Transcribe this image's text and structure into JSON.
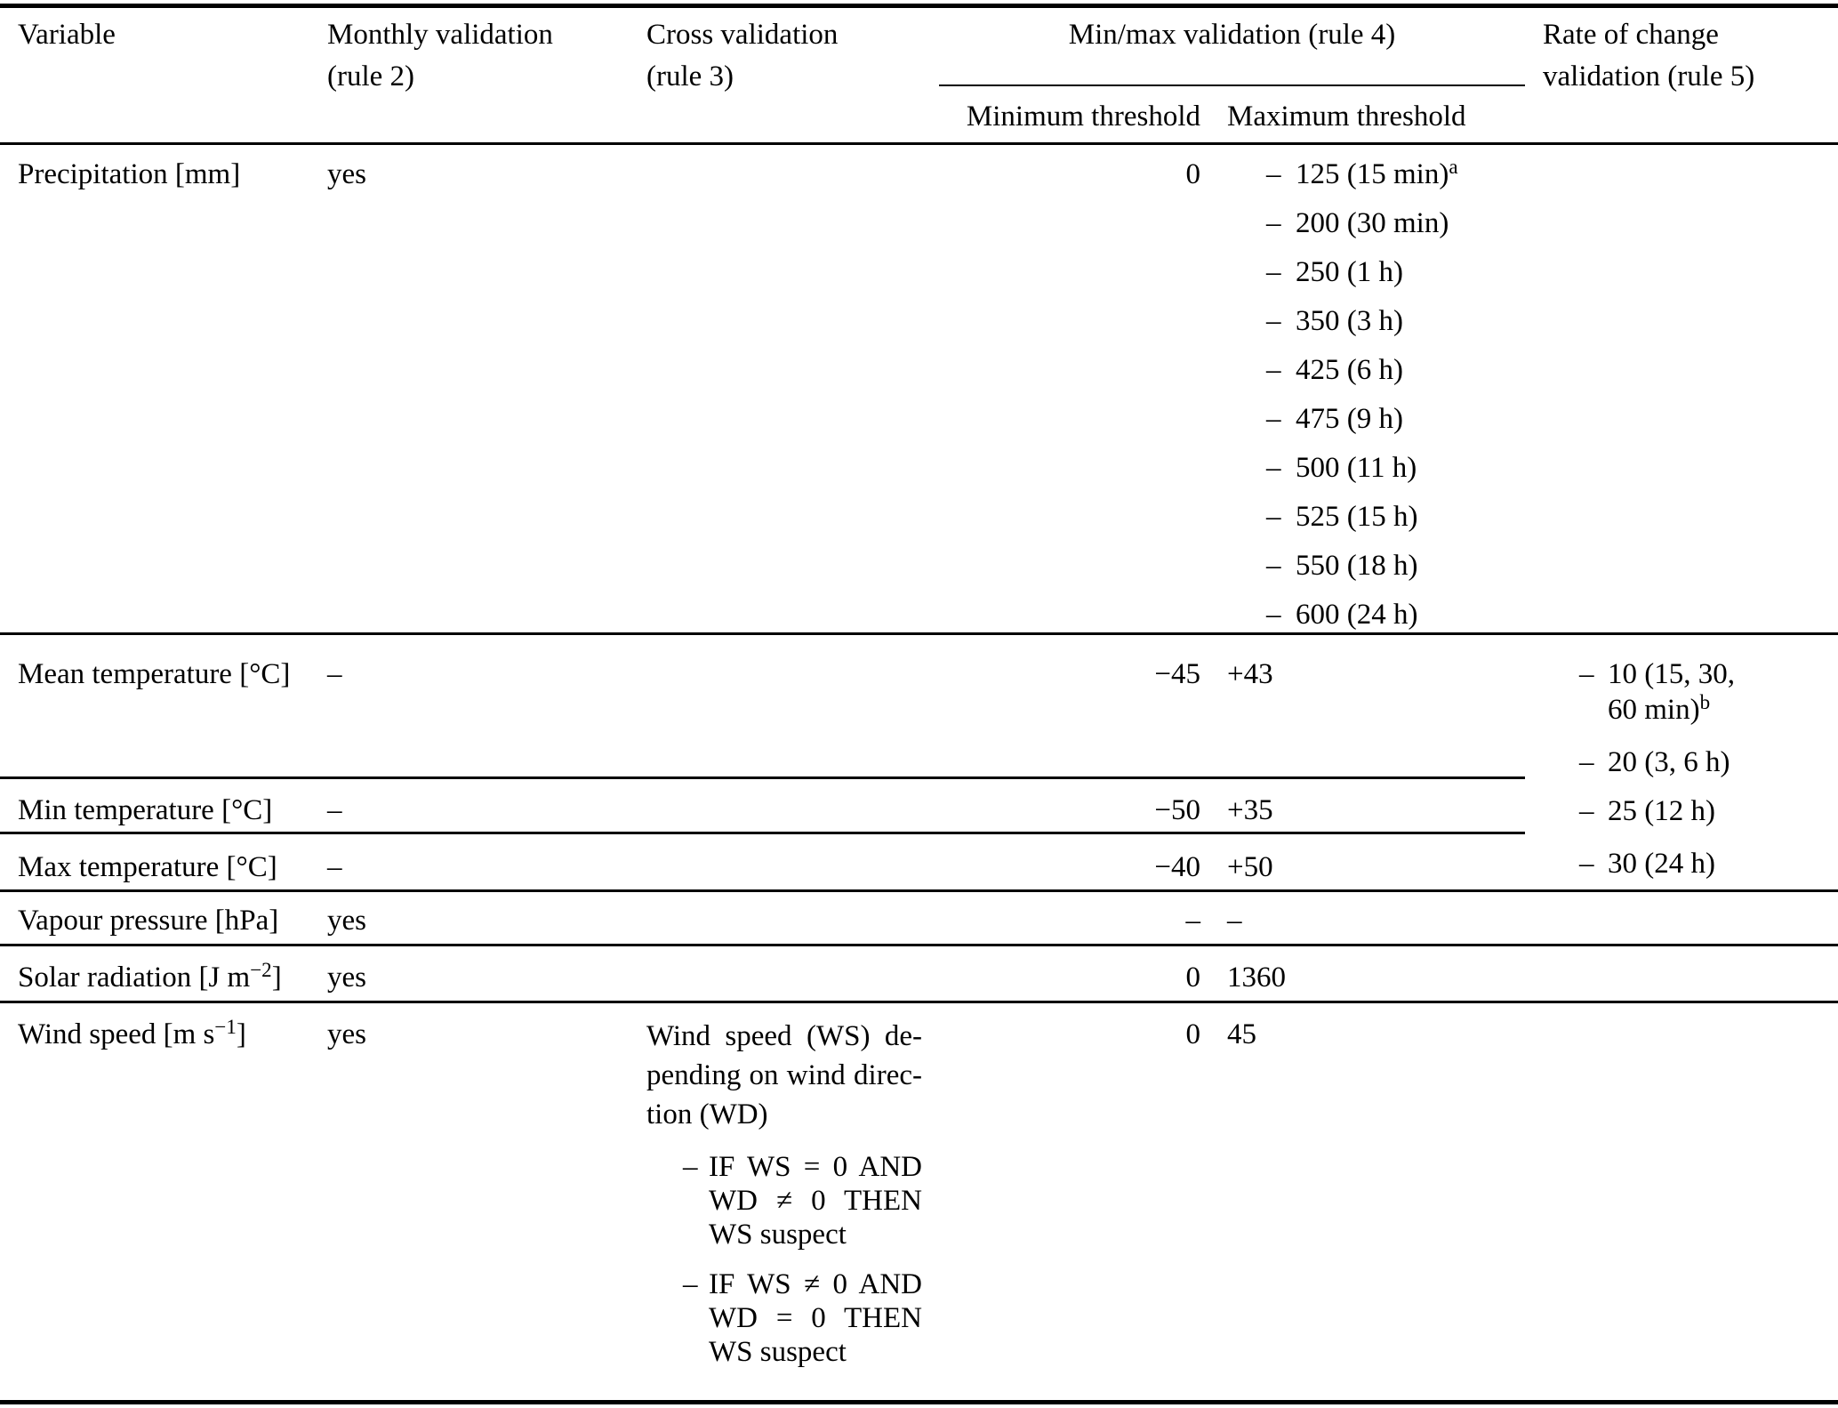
{
  "list_dash": "–",
  "header": {
    "variable": "Variable",
    "monthly": [
      "Monthly validation",
      "(rule 2)"
    ],
    "cross": [
      "Cross validation",
      "(rule 3)"
    ],
    "minmax": "Min/max validation (rule 4)",
    "min_threshold": "Minimum threshold",
    "max_threshold": "Maximum threshold",
    "rate": [
      "Rate of change",
      "validation (rule 5)"
    ]
  },
  "rows": {
    "precipitation": {
      "variable": "Precipitation [mm]",
      "monthly": "yes",
      "min": "0",
      "max_items": [
        {
          "text": "125 (15 min)",
          "sup": "a"
        },
        {
          "text": "200 (30 min)"
        },
        {
          "text": "250 (1 h)"
        },
        {
          "text": "350 (3 h)"
        },
        {
          "text": "425 (6 h)"
        },
        {
          "text": "475 (9 h)"
        },
        {
          "text": "500 (11 h)"
        },
        {
          "text": "525 (15 h)"
        },
        {
          "text": "550 (18 h)"
        },
        {
          "text": "600 (24 h)"
        }
      ]
    },
    "mean_temperature": {
      "variable": "Mean temperature [°C]",
      "monthly": "–",
      "min": "−45",
      "max": "+43",
      "rate_items": [
        {
          "line1": "10 (15, 30,",
          "line2": "60 min)",
          "sup": "b"
        },
        {
          "line1": "20 (3, 6 h)"
        },
        {
          "line1": "25 (12 h)"
        },
        {
          "line1": "30 (24 h)"
        }
      ]
    },
    "min_temperature": {
      "variable": "Min temperature [°C]",
      "monthly": "–",
      "min": "−50",
      "max": "+35"
    },
    "max_temperature": {
      "variable": "Max temperature [°C]",
      "monthly": "–",
      "min": "−40",
      "max": "+50"
    },
    "vapour_pressure": {
      "variable": "Vapour pressure [hPa]",
      "monthly": "yes",
      "min": "–",
      "max": "–"
    },
    "solar_radiation": {
      "var_pre": "Solar radiation [J m",
      "var_sup": "−2",
      "var_post": "]",
      "monthly": "yes",
      "min": "0",
      "max": "1360"
    },
    "wind_speed": {
      "var_pre": "Wind speed [m s",
      "var_sup": "−1",
      "var_post": "]",
      "monthly": "yes",
      "min": "0",
      "max": "45",
      "cross": {
        "para": [
          "Wind speed (WS) de-",
          "pending on wind direc-",
          "tion (WD)"
        ],
        "bullets": [
          {
            "lines": [
              "IF WS = 0 AND",
              "WD ≠ 0 THEN",
              "WS suspect"
            ]
          },
          {
            "lines": [
              "IF WS ≠ 0 AND",
              "WD = 0 THEN",
              "WS suspect"
            ]
          }
        ]
      }
    }
  }
}
